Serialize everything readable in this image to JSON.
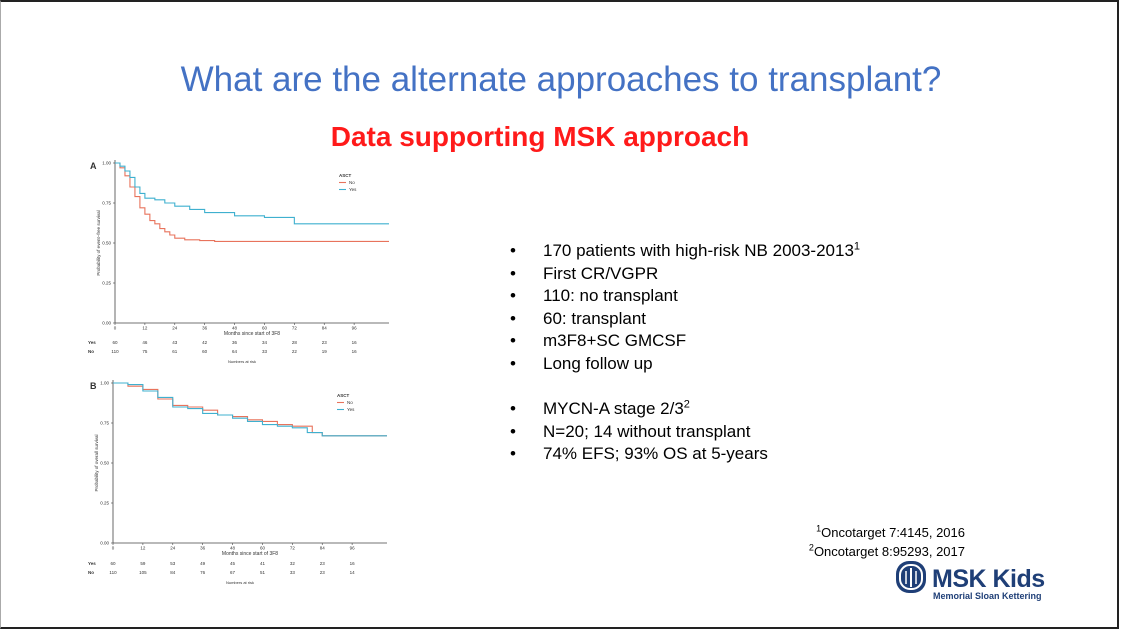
{
  "slide": {
    "title": "What are the alternate approaches to transplant?",
    "subtitle": "Data supporting MSK approach",
    "bullets_group1": [
      {
        "text": "170 patients with high-risk NB 2003-2013",
        "sup": "1"
      },
      {
        "text": "First CR/VGPR",
        "sup": ""
      },
      {
        "text": "110: no transplant",
        "sup": ""
      },
      {
        "text": "60: transplant",
        "sup": ""
      },
      {
        "text": "m3F8+SC GMCSF",
        "sup": ""
      },
      {
        "text": "Long follow up",
        "sup": ""
      }
    ],
    "bullets_group2": [
      {
        "text": "MYCN-A stage 2/3",
        "sup": "2"
      },
      {
        "text": "N=20; 14 without transplant",
        "sup": ""
      },
      {
        "text": "74% EFS; 93% OS at 5-years",
        "sup": ""
      }
    ],
    "bullet_char": "•",
    "references": [
      {
        "sup": "1",
        "text": "Oncotarget 7:4145, 2016"
      },
      {
        "sup": "2",
        "text": "Oncotarget 8:95293, 2017"
      }
    ],
    "logo": {
      "name": "MSK Kids",
      "subtitle": "Memorial Sloan Kettering"
    },
    "colors": {
      "title": "#4472c4",
      "subtitle": "#ff1a1a",
      "no": "#e8735c",
      "yes": "#3fb0cf",
      "logo": "#1f3f77"
    }
  },
  "chart_data": [
    {
      "type": "line",
      "panel": "A",
      "xlabel": "Months since start of 3F8",
      "ylabel": "Probability of event−free survival",
      "xticks": [
        0,
        12,
        24,
        36,
        48,
        60,
        72,
        84,
        96
      ],
      "xlim": [
        0,
        110
      ],
      "ylim": [
        0,
        1
      ],
      "yticks": [
        "0.00",
        "0.25",
        "0.50",
        "0.75",
        "1.00"
      ],
      "legend_title": "ASCT",
      "legend_position": "top-right",
      "series": [
        {
          "name": "No",
          "color": "#e8735c",
          "points": [
            [
              0,
              1.0
            ],
            [
              2,
              0.97
            ],
            [
              4,
              0.92
            ],
            [
              6,
              0.85
            ],
            [
              8,
              0.79
            ],
            [
              10,
              0.72
            ],
            [
              12,
              0.68
            ],
            [
              14,
              0.64
            ],
            [
              16,
              0.62
            ],
            [
              18,
              0.59
            ],
            [
              20,
              0.57
            ],
            [
              22,
              0.55
            ],
            [
              24,
              0.53
            ],
            [
              28,
              0.52
            ],
            [
              34,
              0.515
            ],
            [
              40,
              0.51
            ],
            [
              110,
              0.51
            ]
          ]
        },
        {
          "name": "Yes",
          "color": "#3fb0cf",
          "points": [
            [
              0,
              1.0
            ],
            [
              2,
              0.98
            ],
            [
              4,
              0.95
            ],
            [
              6,
              0.91
            ],
            [
              8,
              0.85
            ],
            [
              10,
              0.81
            ],
            [
              12,
              0.78
            ],
            [
              16,
              0.77
            ],
            [
              20,
              0.75
            ],
            [
              24,
              0.73
            ],
            [
              30,
              0.71
            ],
            [
              36,
              0.69
            ],
            [
              48,
              0.67
            ],
            [
              60,
              0.66
            ],
            [
              72,
              0.62
            ],
            [
              110,
              0.62
            ]
          ]
        }
      ],
      "risk_table": {
        "title": "Numbers at risk",
        "rows": [
          {
            "label": "Yes",
            "values": [
              "60",
              "46",
              "43",
              "42",
              "36",
              "34",
              "28",
              "23",
              "16"
            ]
          },
          {
            "label": "No",
            "values": [
              "110",
              "75",
              "61",
              "60",
              "64",
              "33",
              "22",
              "19",
              "16"
            ]
          }
        ]
      }
    },
    {
      "type": "line",
      "panel": "B",
      "xlabel": "Months since start of 3F8",
      "ylabel": "Probability of overall survival",
      "xticks": [
        0,
        12,
        24,
        36,
        48,
        60,
        72,
        84,
        96
      ],
      "xlim": [
        0,
        110
      ],
      "ylim": [
        0,
        1
      ],
      "yticks": [
        "0.00",
        "0.25",
        "0.50",
        "0.75",
        "1.00"
      ],
      "legend_title": "ASCT",
      "legend_position": "top-right",
      "series": [
        {
          "name": "No",
          "color": "#e8735c",
          "points": [
            [
              0,
              1.0
            ],
            [
              6,
              0.98
            ],
            [
              12,
              0.96
            ],
            [
              18,
              0.9
            ],
            [
              24,
              0.86
            ],
            [
              30,
              0.85
            ],
            [
              36,
              0.83
            ],
            [
              42,
              0.8
            ],
            [
              48,
              0.79
            ],
            [
              54,
              0.77
            ],
            [
              60,
              0.76
            ],
            [
              66,
              0.74
            ],
            [
              72,
              0.73
            ],
            [
              80,
              0.69
            ],
            [
              84,
              0.67
            ],
            [
              110,
              0.67
            ]
          ]
        },
        {
          "name": "Yes",
          "color": "#3fb0cf",
          "points": [
            [
              0,
              1.0
            ],
            [
              6,
              0.99
            ],
            [
              12,
              0.95
            ],
            [
              18,
              0.91
            ],
            [
              24,
              0.85
            ],
            [
              30,
              0.84
            ],
            [
              36,
              0.81
            ],
            [
              42,
              0.8
            ],
            [
              48,
              0.78
            ],
            [
              54,
              0.76
            ],
            [
              60,
              0.74
            ],
            [
              66,
              0.73
            ],
            [
              72,
              0.72
            ],
            [
              78,
              0.69
            ],
            [
              84,
              0.67
            ],
            [
              110,
              0.67
            ]
          ]
        }
      ],
      "risk_table": {
        "title": "Numbers at risk",
        "rows": [
          {
            "label": "Yes",
            "values": [
              "60",
              "59",
              "53",
              "49",
              "45",
              "41",
              "32",
              "23",
              "16"
            ]
          },
          {
            "label": "No",
            "values": [
              "110",
              "105",
              "84",
              "76",
              "67",
              "51",
              "33",
              "23",
              "14"
            ]
          }
        ]
      }
    }
  ]
}
